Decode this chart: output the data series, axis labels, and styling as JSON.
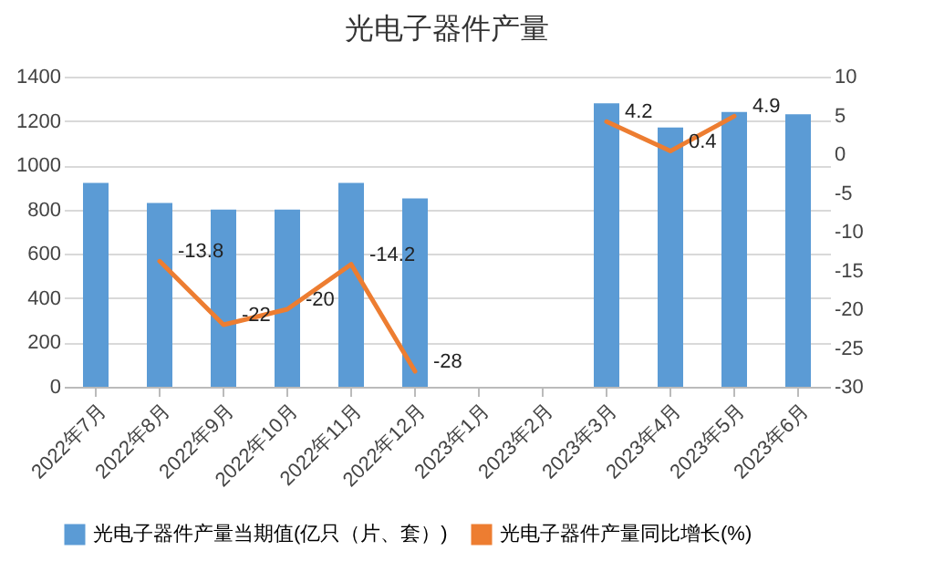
{
  "chart_data": {
    "type": "bar",
    "title": "光电子器件产量",
    "categories": [
      "2022年7月",
      "2022年8月",
      "2022年9月",
      "2022年10月",
      "2022年11月",
      "2022年12月",
      "2023年1月",
      "2023年2月",
      "2023年3月",
      "2023年4月",
      "2023年5月",
      "2023年6月"
    ],
    "series": [
      {
        "name": "光电子器件产量当期值(亿只（片、套）)",
        "color": "#5b9bd5",
        "values": [
          920,
          830,
          800,
          800,
          920,
          850,
          null,
          null,
          1280,
          1170,
          1240,
          1230
        ]
      },
      {
        "name": "光电子器件产量同比增长(%)",
        "type": "line",
        "axis": "y2",
        "color": "#ed7d31",
        "values": [
          null,
          -13.8,
          -22,
          -20,
          -14.2,
          -28,
          null,
          null,
          4.2,
          0.4,
          4.9,
          null
        ],
        "value_labels": [
          null,
          "-13.8",
          "-22",
          "-20",
          "-14.2",
          "-28",
          null,
          null,
          "4.2",
          "0.4",
          "4.9",
          null
        ]
      }
    ],
    "ylim": [
      0,
      1400
    ],
    "yticks": [
      0,
      200,
      400,
      600,
      800,
      1000,
      1200,
      1400
    ],
    "y2lim": [
      -30,
      10
    ],
    "y2ticks": [
      -30,
      -25,
      -20,
      -15,
      -10,
      -5,
      0,
      5,
      10
    ],
    "grid": "y",
    "legend": "bottom"
  }
}
